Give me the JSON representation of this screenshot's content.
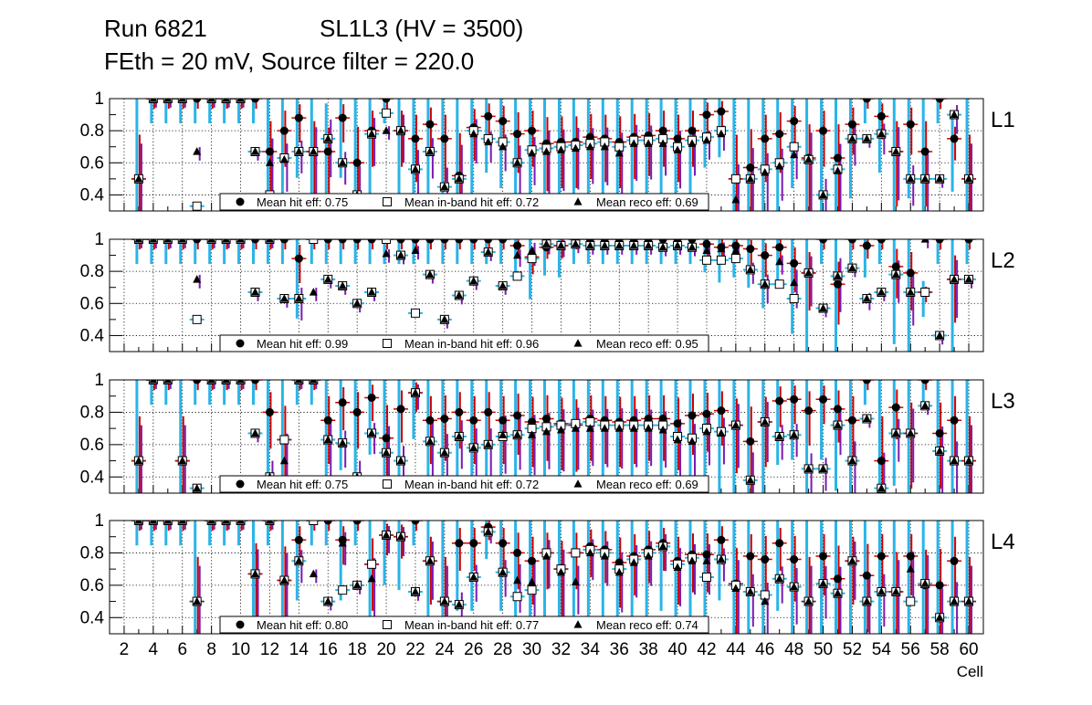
{
  "header": {
    "run": "Run 6821",
    "chamber": "SL1L3 (HV = 3500)",
    "settings": "FEth = 20 mV, Source filter = 220.0"
  },
  "colors": {
    "hit": "#000000",
    "inband_face": "#ffffff",
    "reco": "#000000",
    "err_cyan": "#2ab4e8",
    "err_red": "#cc0000",
    "err_purple": "#7a1ab0",
    "grid": "#000000"
  },
  "chart_data": {
    "type": "scatter",
    "xlabel": "Cell",
    "xlim": [
      1,
      61
    ],
    "ylim": [
      0.3,
      1.0
    ],
    "xticks": [
      2,
      4,
      6,
      8,
      10,
      12,
      14,
      16,
      18,
      20,
      22,
      24,
      26,
      28,
      30,
      32,
      34,
      36,
      38,
      40,
      42,
      44,
      46,
      48,
      50,
      52,
      54,
      56,
      58,
      60
    ],
    "yticks": [
      0.4,
      0.6,
      0.8,
      1
    ],
    "cells": [
      3,
      4,
      5,
      6,
      7,
      8,
      9,
      10,
      11,
      12,
      13,
      14,
      15,
      16,
      17,
      18,
      19,
      20,
      21,
      22,
      23,
      24,
      25,
      26,
      27,
      28,
      29,
      30,
      31,
      32,
      33,
      34,
      35,
      36,
      37,
      38,
      39,
      40,
      41,
      42,
      43,
      44,
      45,
      46,
      47,
      48,
      49,
      50,
      51,
      52,
      53,
      54,
      55,
      56,
      57,
      58,
      59,
      60
    ],
    "panels": [
      {
        "name": "L1",
        "legend": {
          "hit": "Mean hit  eff: 0.75",
          "inband": "Mean in-band hit eff: 0.72",
          "reco": "Mean reco eff: 0.69"
        },
        "hit": [
          0.5,
          1.0,
          1.0,
          1.0,
          1.0,
          1.0,
          1.0,
          1.0,
          1.0,
          0.67,
          0.8,
          0.88,
          0.67,
          0.67,
          0.88,
          0.6,
          0.8,
          1.0,
          0.8,
          0.75,
          0.84,
          0.75,
          0.52,
          0.82,
          0.89,
          0.86,
          0.78,
          0.8,
          0.72,
          0.73,
          0.73,
          0.76,
          0.75,
          0.73,
          0.76,
          0.77,
          0.8,
          0.75,
          0.8,
          0.9,
          0.92,
          0.5,
          0.57,
          0.75,
          0.78,
          0.86,
          0.63,
          0.8,
          0.63,
          0.84,
          1.0,
          0.89,
          0.67,
          0.84,
          0.67,
          1.0,
          0.75,
          0.5
        ],
        "inband": [
          0.5,
          1.0,
          1.0,
          1.0,
          0.33,
          1.0,
          1.0,
          1.0,
          0.67,
          0.4,
          0.63,
          0.67,
          0.67,
          0.75,
          0.6,
          0.4,
          0.78,
          0.91,
          0.8,
          0.56,
          0.67,
          0.45,
          0.5,
          0.8,
          0.75,
          0.73,
          0.6,
          0.68,
          0.69,
          0.7,
          0.71,
          0.72,
          0.73,
          0.7,
          0.74,
          0.74,
          0.75,
          0.7,
          0.74,
          0.76,
          0.8,
          0.5,
          0.5,
          0.56,
          0.6,
          0.7,
          0.62,
          0.4,
          0.56,
          0.75,
          0.75,
          0.78,
          0.67,
          0.5,
          0.5,
          0.5,
          0.9,
          0.5
        ],
        "reco": [
          0.5,
          1.0,
          1.0,
          1.0,
          0.67,
          1.0,
          1.0,
          1.0,
          0.67,
          0.6,
          0.62,
          0.67,
          0.67,
          0.75,
          0.6,
          0.4,
          0.78,
          0.8,
          0.8,
          0.56,
          0.67,
          0.45,
          0.5,
          0.78,
          0.73,
          0.7,
          0.6,
          0.66,
          0.67,
          0.68,
          0.69,
          0.7,
          0.7,
          0.66,
          0.72,
          0.72,
          0.72,
          0.68,
          0.72,
          0.74,
          0.78,
          0.37,
          0.5,
          0.54,
          0.58,
          0.65,
          0.62,
          0.4,
          0.55,
          0.75,
          0.75,
          0.78,
          0.67,
          0.5,
          0.5,
          0.5,
          0.9,
          0.5
        ]
      },
      {
        "name": "L2",
        "legend": {
          "hit": "Mean hit  eff: 0.99",
          "inband": "Mean in-band hit eff: 0.96",
          "reco": "Mean reco eff: 0.95"
        },
        "hit": [
          1.0,
          1.0,
          1.0,
          1.0,
          1.0,
          1.0,
          1.0,
          1.0,
          1.0,
          1.0,
          1.0,
          0.88,
          1.0,
          1.0,
          1.0,
          1.0,
          1.0,
          1.0,
          1.0,
          1.0,
          1.0,
          1.0,
          1.0,
          1.0,
          1.0,
          1.0,
          0.96,
          0.89,
          0.95,
          0.96,
          1.0,
          1.0,
          1.0,
          1.0,
          1.0,
          1.0,
          1.0,
          1.0,
          1.0,
          0.97,
          0.95,
          0.96,
          0.94,
          0.9,
          0.95,
          0.85,
          0.79,
          1.0,
          0.72,
          1.0,
          0.96,
          1.0,
          0.83,
          0.79,
          0.67,
          1.0,
          0.75,
          1.0
        ],
        "inband": [
          1.0,
          1.0,
          1.0,
          1.0,
          0.5,
          1.0,
          1.0,
          1.0,
          0.67,
          1.0,
          0.63,
          0.63,
          1.0,
          0.75,
          0.71,
          0.6,
          0.67,
          1.0,
          0.9,
          0.54,
          0.78,
          0.5,
          0.65,
          0.74,
          0.92,
          0.71,
          0.77,
          0.88,
          0.97,
          0.96,
          0.97,
          0.96,
          0.96,
          0.96,
          0.96,
          0.96,
          0.95,
          0.96,
          0.95,
          0.87,
          0.87,
          0.88,
          0.81,
          0.72,
          0.72,
          0.63,
          0.79,
          0.57,
          0.77,
          0.82,
          0.63,
          0.67,
          0.78,
          0.67,
          0.67,
          0.4,
          0.75,
          0.75
        ],
        "reco": [
          1.0,
          1.0,
          1.0,
          1.0,
          0.75,
          1.0,
          1.0,
          1.0,
          0.67,
          1.0,
          0.63,
          0.63,
          0.67,
          0.75,
          0.71,
          0.6,
          0.67,
          0.91,
          0.9,
          0.93,
          0.78,
          0.5,
          0.65,
          0.74,
          0.92,
          0.71,
          0.9,
          0.93,
          0.97,
          0.96,
          0.97,
          0.96,
          0.96,
          0.96,
          0.96,
          0.96,
          0.95,
          0.96,
          0.95,
          0.93,
          0.94,
          0.93,
          0.81,
          0.72,
          0.86,
          0.73,
          0.79,
          0.57,
          0.77,
          0.82,
          0.63,
          0.67,
          0.78,
          0.67,
          1.0,
          0.4,
          0.75,
          0.75
        ]
      },
      {
        "name": "L3",
        "legend": {
          "hit": "Mean hit  eff: 0.75",
          "inband": "Mean in-band hit eff: 0.72",
          "reco": "Mean reco eff: 0.69"
        },
        "hit": [
          0.5,
          1.0,
          1.0,
          0.5,
          1.0,
          1.0,
          1.0,
          1.0,
          1.0,
          0.8,
          0.63,
          1.0,
          1.0,
          0.75,
          0.86,
          0.8,
          0.89,
          0.64,
          0.82,
          0.92,
          0.75,
          0.76,
          0.8,
          0.75,
          0.8,
          0.75,
          0.78,
          0.74,
          0.76,
          0.73,
          0.72,
          0.76,
          0.75,
          0.74,
          0.75,
          0.76,
          0.76,
          0.73,
          0.78,
          0.79,
          0.81,
          0.72,
          0.62,
          0.74,
          0.87,
          0.88,
          0.81,
          0.88,
          0.82,
          0.75,
          1.0,
          0.5,
          0.83,
          0.67,
          1.0,
          0.67,
          0.75,
          0.5
        ],
        "inband": [
          0.5,
          1.0,
          1.0,
          0.5,
          0.33,
          1.0,
          1.0,
          1.0,
          0.67,
          0.4,
          0.63,
          1.0,
          1.0,
          0.63,
          0.61,
          0.4,
          0.67,
          0.55,
          0.5,
          0.92,
          0.62,
          0.55,
          0.65,
          0.58,
          0.6,
          0.65,
          0.66,
          0.7,
          0.71,
          0.72,
          0.73,
          0.74,
          0.72,
          0.72,
          0.72,
          0.72,
          0.72,
          0.65,
          0.64,
          0.7,
          0.68,
          0.72,
          0.38,
          0.74,
          0.65,
          0.66,
          0.45,
          0.45,
          0.72,
          0.5,
          0.76,
          0.33,
          0.67,
          0.67,
          0.84,
          0.56,
          0.5,
          0.5
        ],
        "reco": [
          0.5,
          1.0,
          1.0,
          0.5,
          0.33,
          1.0,
          1.0,
          1.0,
          0.67,
          0.4,
          0.5,
          1.0,
          1.0,
          0.63,
          0.61,
          0.4,
          0.67,
          0.55,
          0.5,
          0.92,
          0.62,
          0.55,
          0.65,
          0.58,
          0.6,
          0.66,
          0.66,
          0.66,
          0.68,
          0.69,
          0.7,
          0.7,
          0.7,
          0.7,
          0.7,
          0.7,
          0.69,
          0.63,
          0.62,
          0.68,
          0.67,
          0.72,
          0.38,
          0.74,
          0.65,
          0.66,
          0.45,
          0.45,
          0.72,
          0.5,
          0.76,
          0.33,
          0.67,
          0.67,
          0.84,
          0.56,
          0.5,
          0.5
        ]
      },
      {
        "name": "L4",
        "legend": {
          "hit": "Mean hit  eff: 0.80",
          "inband": "Mean in-band hit eff: 0.77",
          "reco": "Mean reco eff: 0.74"
        },
        "hit": [
          1.0,
          1.0,
          1.0,
          1.0,
          0.5,
          1.0,
          1.0,
          1.0,
          0.67,
          1.0,
          0.63,
          0.88,
          1.0,
          1.0,
          0.88,
          1.0,
          0.73,
          0.91,
          0.9,
          1.0,
          0.75,
          0.5,
          0.86,
          0.86,
          0.96,
          0.86,
          0.8,
          0.75,
          0.8,
          0.7,
          0.8,
          0.84,
          0.82,
          0.74,
          0.78,
          0.82,
          0.86,
          0.75,
          0.79,
          0.79,
          0.88,
          0.61,
          0.78,
          0.76,
          0.86,
          0.76,
          0.5,
          0.78,
          0.64,
          0.75,
          0.66,
          0.78,
          0.56,
          0.78,
          0.6,
          0.6,
          0.75,
          0.5
        ],
        "inband": [
          1.0,
          1.0,
          1.0,
          1.0,
          0.5,
          1.0,
          1.0,
          1.0,
          0.67,
          1.0,
          0.63,
          0.75,
          1.0,
          0.5,
          0.57,
          0.6,
          0.73,
          0.91,
          0.9,
          0.56,
          0.75,
          0.5,
          0.48,
          0.65,
          0.93,
          0.68,
          0.53,
          0.57,
          0.8,
          0.7,
          0.8,
          0.82,
          0.8,
          0.7,
          0.76,
          0.8,
          0.84,
          0.73,
          0.77,
          0.65,
          0.76,
          0.6,
          0.56,
          0.54,
          0.64,
          0.59,
          0.5,
          0.61,
          0.55,
          0.75,
          0.5,
          0.56,
          0.56,
          0.5,
          0.61,
          0.4,
          0.5,
          0.5
        ],
        "reco": [
          1.0,
          1.0,
          1.0,
          1.0,
          0.5,
          1.0,
          1.0,
          1.0,
          0.67,
          1.0,
          0.63,
          0.75,
          0.67,
          0.5,
          0.86,
          0.6,
          0.64,
          0.91,
          0.9,
          0.56,
          0.75,
          0.5,
          0.48,
          0.65,
          0.93,
          0.68,
          0.63,
          0.62,
          0.78,
          0.68,
          0.62,
          0.8,
          0.78,
          0.68,
          0.74,
          0.78,
          0.84,
          0.71,
          0.75,
          0.75,
          0.76,
          0.58,
          0.56,
          0.5,
          0.64,
          0.59,
          0.5,
          0.61,
          0.55,
          0.75,
          0.5,
          0.56,
          0.56,
          0.7,
          0.61,
          0.4,
          0.5,
          0.5
        ]
      }
    ]
  }
}
